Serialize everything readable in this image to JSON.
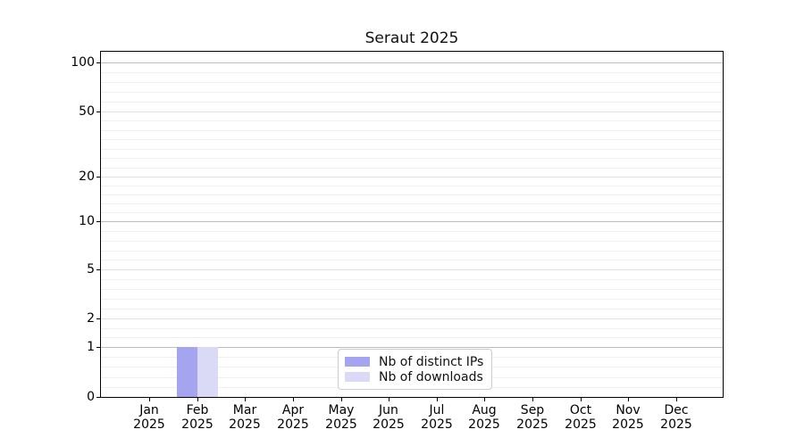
{
  "title": "Seraut 2025",
  "chart_data": {
    "type": "bar",
    "title": "Seraut 2025",
    "xlabel": "",
    "ylabel": "",
    "yscale": "symlog",
    "ylim": [
      0,
      110
    ],
    "grid": "horizontal major+minor",
    "legend_position": "lower center",
    "year": "2025",
    "months": [
      "Jan",
      "Feb",
      "Mar",
      "Apr",
      "May",
      "Jun",
      "Jul",
      "Aug",
      "Sep",
      "Oct",
      "Nov",
      "Dec"
    ],
    "yticks": [
      {
        "value": 100,
        "pos": 0.031,
        "major": true
      },
      {
        "value": 50,
        "pos": 0.173,
        "major": false
      },
      {
        "value": 20,
        "pos": 0.362,
        "major": false
      },
      {
        "value": 10,
        "pos": 0.491,
        "major": true
      },
      {
        "value": 5,
        "pos": 0.631,
        "major": false
      },
      {
        "value": 2,
        "pos": 0.773,
        "major": false
      },
      {
        "value": 1,
        "pos": 0.855,
        "major": true
      },
      {
        "value": 0,
        "pos": 1.0,
        "major": true
      }
    ],
    "series": [
      {
        "name": "Nb of distinct IPs",
        "color": "#a4a4f1",
        "values": [
          0,
          1,
          0,
          0,
          0,
          0,
          0,
          0,
          0,
          0,
          0,
          0
        ]
      },
      {
        "name": "Nb of downloads",
        "color": "#dadaf6",
        "values": [
          0,
          1,
          0,
          0,
          0,
          0,
          0,
          0,
          0,
          0,
          0,
          0
        ]
      }
    ]
  },
  "colors": {
    "background": "#ffffff",
    "axis": "#000000",
    "grid_major": "#bdbdbd",
    "grid_labeled_minor": "#e2e2e2",
    "grid_faint": "#efefef",
    "legend_border": "#cccccc",
    "bar_distinct_ips": "#a4a4f1",
    "bar_downloads": "#dadaf6"
  }
}
